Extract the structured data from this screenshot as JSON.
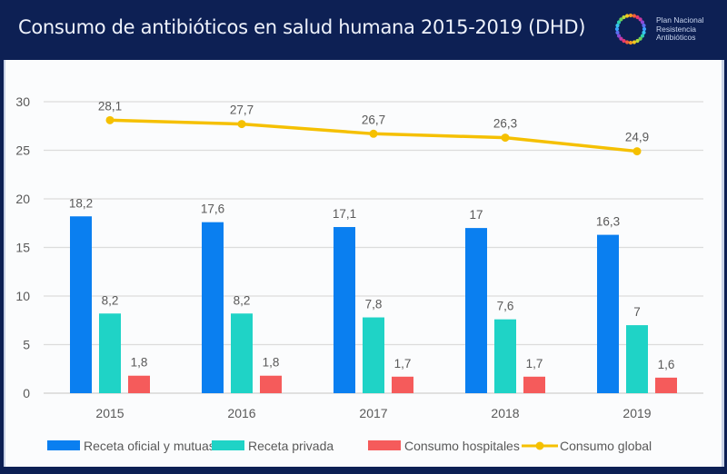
{
  "header": {
    "title": "Consumo de antibióticos en salud humana 2015-2019 (DHD)",
    "logo": {
      "icon": "ring-of-dots-icon",
      "lines": [
        "Plan Nacional",
        "Resistencia",
        "Antibióticos"
      ]
    }
  },
  "chart_data": {
    "type": "bar",
    "title": "Consumo de antibióticos en salud humana 2015-2019 (DHD)",
    "xlabel": "",
    "ylabel": "",
    "categories": [
      "2015",
      "2016",
      "2017",
      "2018",
      "2019"
    ],
    "ylim": [
      0,
      30
    ],
    "yticks": [
      "0",
      "5",
      "10",
      "15",
      "20",
      "25",
      "30"
    ],
    "grid": true,
    "legend_position": "bottom",
    "series": [
      {
        "name": "Receta oficial y mutuas",
        "type": "bar",
        "color": "#0a7ff0",
        "values": [
          18.2,
          17.6,
          17.1,
          17,
          16.3
        ],
        "labels": [
          "18,2",
          "17,6",
          "17,1",
          "17",
          "16,3"
        ]
      },
      {
        "name": "Receta privada",
        "type": "bar",
        "color": "#1fd3c6",
        "values": [
          8.2,
          8.2,
          7.8,
          7.6,
          7
        ],
        "labels": [
          "8,2",
          "8,2",
          "7,8",
          "7,6",
          "7"
        ]
      },
      {
        "name": "Consumo hospitales",
        "type": "bar",
        "color": "#f55b5b",
        "values": [
          1.8,
          1.8,
          1.7,
          1.7,
          1.6
        ],
        "labels": [
          "1,8",
          "1,8",
          "1,7",
          "1,7",
          "1,6"
        ]
      },
      {
        "name": "Consumo global",
        "type": "line",
        "color": "#f5c000",
        "values": [
          28.1,
          27.7,
          26.7,
          26.3,
          24.9
        ],
        "labels": [
          "28,1",
          "27,7",
          "26,7",
          "26,3",
          "24,9"
        ]
      }
    ]
  }
}
